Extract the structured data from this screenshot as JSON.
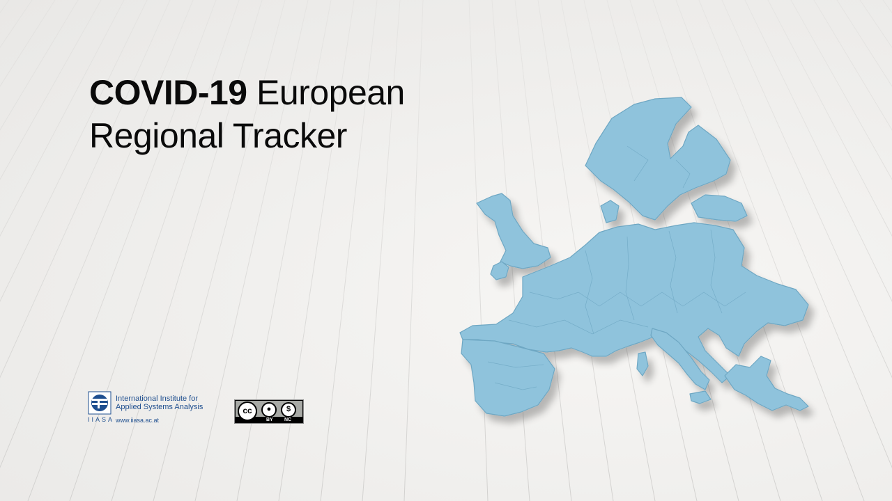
{
  "slide": {
    "title_bold": "COVID-19",
    "title_rest_line1": " European",
    "title_line2": "Regional Tracker"
  },
  "logos": {
    "iiasa": {
      "name_line1": "International Institute for",
      "name_line2": "Applied Systems Analysis",
      "acronym": "IIASA",
      "url": "www.iiasa.ac.at",
      "color": "#1f4f8f"
    },
    "license": {
      "main": "cc",
      "by_label": "BY",
      "nc_label": "NC"
    }
  },
  "map": {
    "icon": "europe-regions-3d-map",
    "fill_color": "#8fc3dc",
    "edge_color": "#6ea7c3"
  }
}
